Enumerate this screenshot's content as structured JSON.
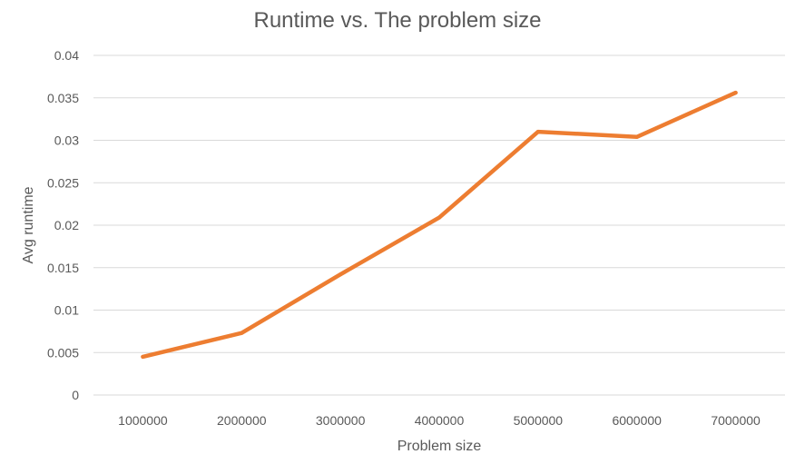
{
  "chart_data": {
    "type": "line",
    "title": "Runtime vs. The problem size",
    "xlabel": "Problem size",
    "ylabel": "Avg runtime",
    "categories": [
      "1000000",
      "2000000",
      "3000000",
      "4000000",
      "5000000",
      "6000000",
      "7000000"
    ],
    "series": [
      {
        "values": [
          0.0045,
          0.0073,
          0.0142,
          0.0209,
          0.031,
          0.0304,
          0.0356
        ],
        "color": "#ED7D31"
      }
    ],
    "y_ticks": [
      "0",
      "0.005",
      "0.01",
      "0.015",
      "0.02",
      "0.025",
      "0.03",
      "0.035",
      "0.04"
    ],
    "ylim": [
      0,
      0.04
    ],
    "grid": true,
    "legend": "none"
  }
}
